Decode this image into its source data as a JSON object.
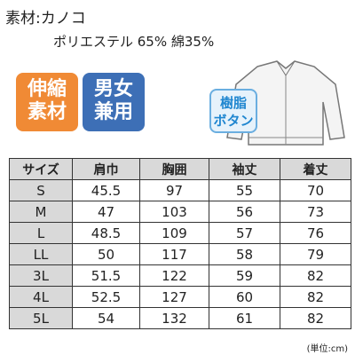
{
  "material": {
    "label": "素材:カノコ",
    "composition": "ポリエステル 65% 綿35%"
  },
  "badges": [
    {
      "lines": [
        "伸縮",
        "素材"
      ]
    },
    {
      "lines": [
        "男女",
        "兼用"
      ]
    }
  ],
  "button_badge": {
    "lines": [
      "樹脂",
      "ボタン"
    ]
  },
  "table": {
    "header": [
      "サイズ",
      "肩巾",
      "胸囲",
      "袖丈",
      "着丈"
    ],
    "rows": [
      [
        "S",
        "45.5",
        "97",
        "55",
        "70"
      ],
      [
        "M",
        "47",
        "103",
        "56",
        "73"
      ],
      [
        "L",
        "48.5",
        "109",
        "57",
        "76"
      ],
      [
        "LL",
        "50",
        "117",
        "58",
        "79"
      ],
      [
        "3L",
        "51.5",
        "122",
        "59",
        "82"
      ],
      [
        "4L",
        "52.5",
        "127",
        "60",
        "82"
      ],
      [
        "5L",
        "54",
        "132",
        "61",
        "82"
      ]
    ]
  },
  "unit_note": "(単位:cm)"
}
